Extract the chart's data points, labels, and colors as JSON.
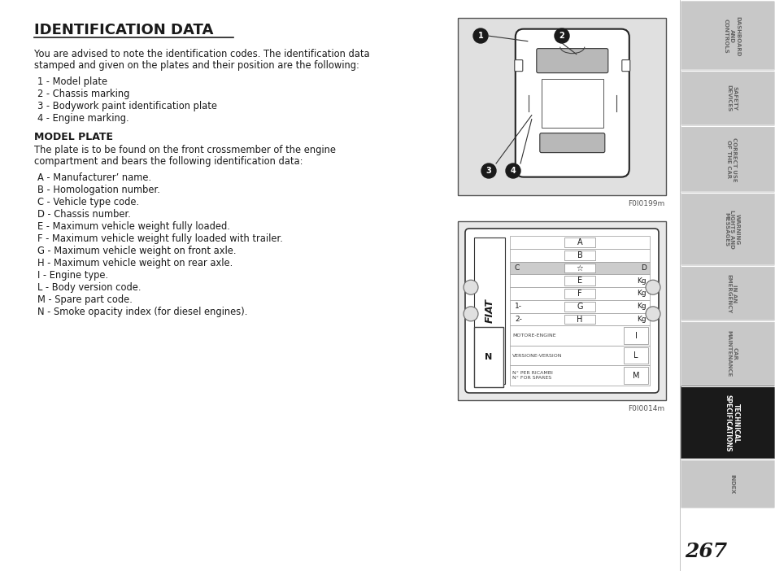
{
  "title": "IDENTIFICATION DATA",
  "bg_color": "#ffffff",
  "page_number": "267",
  "intro_text_1": "You are advised to note the identification codes. The identification data",
  "intro_text_2": "stamped and given on the plates and their position are the following:",
  "list_items": [
    "1 - Model plate",
    "2 - Chassis marking",
    "3 - Bodywork paint identification plate",
    "4 - Engine marking."
  ],
  "model_plate_title": "MODEL PLATE",
  "model_plate_intro_1": "The plate is to be found on the front crossmember of the engine",
  "model_plate_intro_2": "compartment and bears the following identification data:",
  "model_plate_items": [
    "A - Manufacturer’ name.",
    "B - Homologation number.",
    "C - Vehicle type code.",
    "D - Chassis number.",
    "E - Maximum vehicle weight fully loaded.",
    "F - Maximum vehicle weight fully loaded with trailer.",
    "G - Maximum vehicle weight on front axle.",
    "H - Maximum vehicle weight on rear axle.",
    "I - Engine type.",
    "L - Body version code.",
    "M - Spare part code.",
    "N - Smoke opacity index (for diesel engines)."
  ],
  "tab_labels": [
    "DASHBOARD\nAND\nCONTROLS",
    "SAFETY\nDEVICES",
    "CORRECT USE\nOF THE CAR",
    "WARNING\nLIGHTS AND\nMESSAGES",
    "IN AN\nEMERGENCY",
    "CAR\nMAINTENANCE",
    "TECHNICAL\nSPECIFICATIONS",
    "INDEX"
  ],
  "active_tab": 6,
  "fig1_label": "F0I0199m",
  "fig2_label": "F0I0014m",
  "tab_active_color": "#1a1a1a",
  "tab_inactive_color": "#c8c8c8",
  "tab_text_active": "#ffffff",
  "tab_text_inactive": "#666666"
}
